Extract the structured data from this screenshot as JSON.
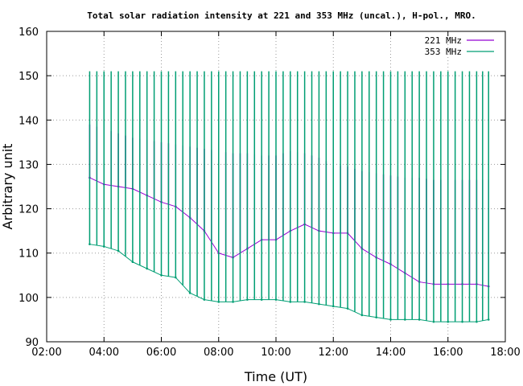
{
  "chart_data": {
    "type": "line",
    "title": "Total solar radiation intensity at 221 and 353 MHz (uncal.), H-pol., MRO.",
    "xlabel": "Time (UT)",
    "ylabel": "Arbitrary unit",
    "xlim": [
      "02:00",
      "18:00"
    ],
    "ylim": [
      90,
      160
    ],
    "x_ticks": [
      "02:00",
      "04:00",
      "06:00",
      "08:00",
      "10:00",
      "12:00",
      "14:00",
      "16:00",
      "18:00"
    ],
    "y_ticks": [
      "90",
      "100",
      "110",
      "120",
      "130",
      "140",
      "150",
      "160"
    ],
    "grid": true,
    "legend_position": "top-right",
    "x": [
      "03:30",
      "04:00",
      "04:30",
      "05:00",
      "05:30",
      "06:00",
      "06:30",
      "07:00",
      "07:30",
      "08:00",
      "08:30",
      "09:00",
      "09:30",
      "10:00",
      "10:30",
      "11:00",
      "11:30",
      "12:00",
      "12:30",
      "13:00",
      "13:30",
      "14:00",
      "14:30",
      "15:00",
      "15:30",
      "16:00",
      "16:30",
      "17:00",
      "17:25"
    ],
    "series": [
      {
        "name": "221 MHz",
        "color": "#9400d3",
        "values": [
          127,
          125.5,
          125,
          124.5,
          123,
          121.5,
          120.5,
          118,
          115,
          110,
          109,
          111,
          113,
          113,
          115,
          116.5,
          115,
          114.5,
          114.5,
          111,
          109,
          107.5,
          105.5,
          103.5,
          103,
          103,
          103,
          103,
          102.5
        ],
        "calibration_peaks": [
          139,
          138,
          137,
          136,
          135.5,
          135,
          134.5,
          134,
          133.5,
          133,
          132.5,
          132.5,
          132,
          132,
          133,
          132.5,
          131.5,
          130,
          129.5,
          128.5,
          128,
          127.5,
          127,
          127,
          126.5,
          126.5,
          126.5,
          126.5,
          126.5
        ]
      },
      {
        "name": "353 MHz",
        "color": "#009e73",
        "values": [
          112,
          111.5,
          110.5,
          108,
          106.5,
          105,
          104.5,
          101,
          99.5,
          99,
          99,
          99.5,
          99.5,
          99.5,
          99,
          99,
          98.5,
          98,
          97.5,
          96,
          95.5,
          95,
          95,
          95,
          94.5,
          94.5,
          94.5,
          94.5,
          95
        ],
        "calibration_peaks": [
          151,
          151,
          151,
          151,
          151,
          151,
          151,
          151,
          151,
          151,
          151,
          151,
          151,
          151,
          151,
          151,
          151,
          151,
          151,
          151,
          151,
          151,
          151,
          151,
          151,
          151,
          151,
          151,
          151
        ]
      }
    ]
  }
}
